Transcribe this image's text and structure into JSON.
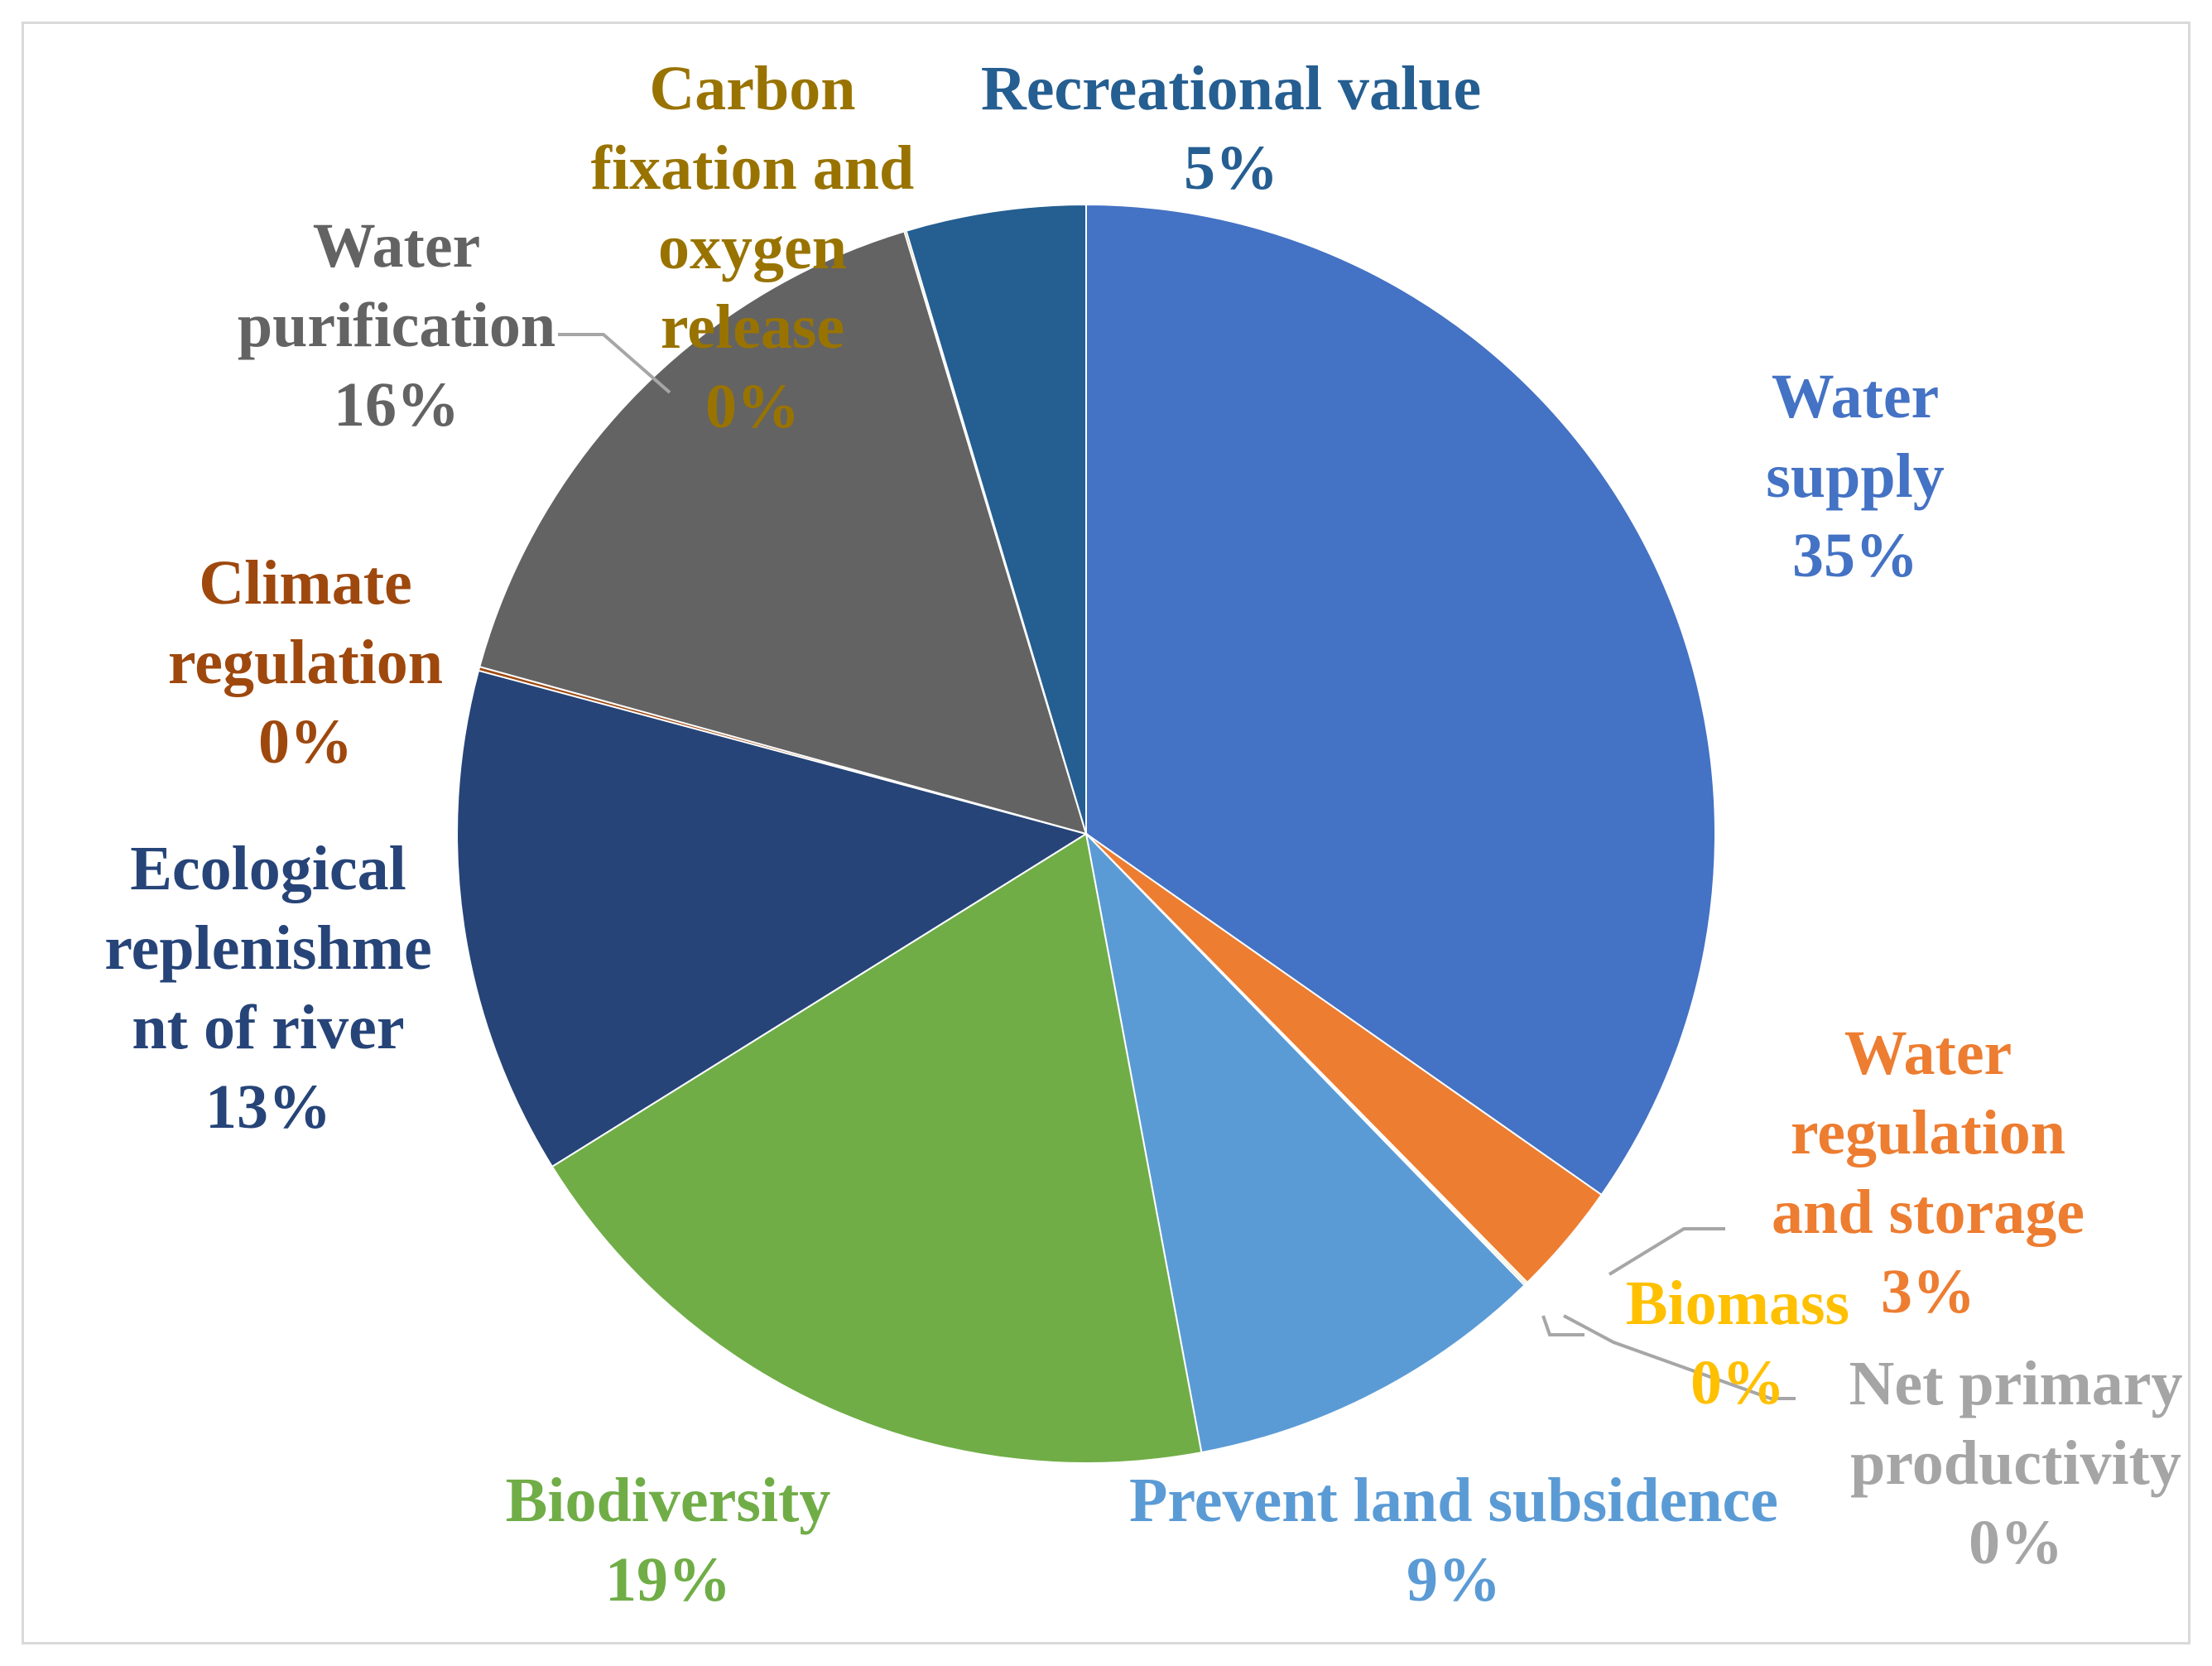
{
  "chart_data": {
    "type": "pie",
    "title": "",
    "start_angle_deg": 0,
    "direction": "clockwise",
    "slices": [
      {
        "label": "Water supply",
        "label_lines": [
          "Water",
          "supply"
        ],
        "pct_text": "35%",
        "value": 34.6,
        "color": "#4472c4",
        "text_color": "#4472c4"
      },
      {
        "label": "Water regulation and storage",
        "label_lines": [
          "Water",
          "regulation",
          "and storage"
        ],
        "pct_text": "3%",
        "value": 2.9,
        "color": "#ed7d31",
        "text_color": "#ed7d31"
      },
      {
        "label": "Biomass",
        "label_lines": [
          "Biomass"
        ],
        "pct_text": "0%",
        "value": 0.05,
        "color": "#ffc000",
        "text_color": "#ffc000"
      },
      {
        "label": "Net primary productivity",
        "label_lines": [
          "Net primary",
          "productivity"
        ],
        "pct_text": "0%",
        "value": 0.05,
        "color": "#a5a5a5",
        "text_color": "#a5a5a5"
      },
      {
        "label": "Prevent land subsidence",
        "label_lines": [
          "Prevent land subsidence"
        ],
        "pct_text": "9%",
        "value": 9.3,
        "color": "#5b9bd5",
        "text_color": "#5b9bd5"
      },
      {
        "label": "Biodiversity",
        "label_lines": [
          "Biodiversity"
        ],
        "pct_text": "19%",
        "value": 19.0,
        "color": "#70ad47",
        "text_color": "#70ad47"
      },
      {
        "label": "Ecological replenishment of river",
        "label_lines": [
          "Ecological",
          "replenishme",
          "nt of river"
        ],
        "pct_text": "13%",
        "value": 13.0,
        "color": "#264478",
        "text_color": "#264478"
      },
      {
        "label": "Climate regulation",
        "label_lines": [
          "Climate",
          "regulation"
        ],
        "pct_text": "0%",
        "value": 0.1,
        "color": "#9e480e",
        "text_color": "#9e480e"
      },
      {
        "label": "Water purification",
        "label_lines": [
          "Water",
          "purification"
        ],
        "pct_text": "16%",
        "value": 16.0,
        "color": "#636363",
        "text_color": "#636363"
      },
      {
        "label": "Carbon fixation and oxygen release",
        "label_lines": [
          "Carbon",
          "fixation and",
          "oxygen",
          "release"
        ],
        "pct_text": "0%",
        "value": 0.05,
        "color": "#997300",
        "text_color": "#997300"
      },
      {
        "label": "Recreational value",
        "label_lines": [
          "Recreational value"
        ],
        "pct_text": "5%",
        "value": 4.6,
        "color": "#255e91",
        "text_color": "#255e91"
      }
    ]
  }
}
